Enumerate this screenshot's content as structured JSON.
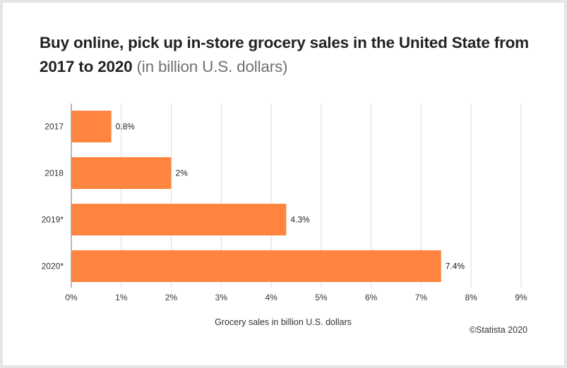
{
  "chart_data": {
    "type": "bar",
    "orientation": "horizontal",
    "title": "Buy online, pick up in-store grocery sales in the United State from 2017 to 2020",
    "subtitle": "(in billion U.S. dollars)",
    "categories": [
      "2017",
      "2018",
      "2019*",
      "2020*"
    ],
    "values": [
      0.8,
      2,
      4.3,
      7.4
    ],
    "data_labels": [
      "0.8%",
      "2%",
      "4.3%",
      "7.4%"
    ],
    "xlabel": "Grocery sales in billion U.S. dollars",
    "ylabel": "",
    "xlim": [
      0,
      9
    ],
    "x_ticks": [
      0,
      1,
      2,
      3,
      4,
      5,
      6,
      7,
      8,
      9
    ],
    "x_tick_labels": [
      "0%",
      "1%",
      "2%",
      "3%",
      "4%",
      "5%",
      "6%",
      "7%",
      "8%",
      "9%"
    ],
    "grid": true,
    "legend": "none",
    "bar_color": "#ff8440",
    "grid_color": "#dcdcdc",
    "axis_color": "#a0a0a0"
  },
  "credit": "©Statista 2020"
}
